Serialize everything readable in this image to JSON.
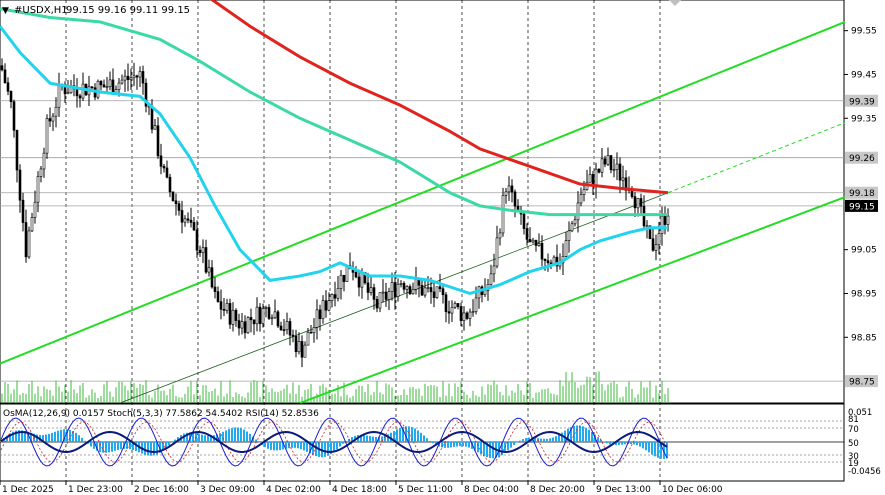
{
  "chart_data": {
    "type": "candlestick",
    "symbol_header": "#USDX,H1",
    "ohlc_header": "99.15 99.16 99.11 99.15",
    "main_panel": {
      "ylim": [
        98.7,
        99.62
      ],
      "y_ticks": [
        "99.55",
        "99.45",
        "99.35",
        "99.05",
        "98.95",
        "98.85"
      ],
      "price_tags": [
        {
          "value": 99.39,
          "label": "99.39",
          "style": "gray"
        },
        {
          "value": 99.26,
          "label": "99.26",
          "style": "gray"
        },
        {
          "value": 99.18,
          "label": "99.18",
          "style": "gray"
        },
        {
          "value": 99.15,
          "label": "99.15",
          "style": "black"
        },
        {
          "value": 98.75,
          "label": "98.75",
          "style": "gray"
        }
      ],
      "moving_averages": [
        {
          "color": "#22d3ee",
          "points": [
            [
              0,
              99.56
            ],
            [
              20,
              99.5
            ],
            [
              50,
              99.43
            ],
            [
              100,
              99.41
            ],
            [
              140,
              99.4
            ],
            [
              160,
              99.36
            ],
            [
              190,
              99.26
            ],
            [
              215,
              99.15
            ],
            [
              240,
              99.05
            ],
            [
              270,
              98.98
            ],
            [
              300,
              98.99
            ],
            [
              320,
              99.0
            ],
            [
              340,
              99.02
            ],
            [
              370,
              98.99
            ],
            [
              400,
              98.99
            ],
            [
              430,
              98.98
            ],
            [
              470,
              98.95
            ],
            [
              500,
              98.97
            ],
            [
              530,
              99.0
            ],
            [
              560,
              99.02
            ],
            [
              580,
              99.05
            ],
            [
              600,
              99.07
            ],
            [
              630,
              99.09
            ],
            [
              650,
              99.1
            ],
            [
              668,
              99.1
            ]
          ]
        },
        {
          "color": "#3cd9a8",
          "points": [
            [
              0,
              99.6
            ],
            [
              50,
              99.58
            ],
            [
              100,
              99.57
            ],
            [
              160,
              99.53
            ],
            [
              200,
              99.48
            ],
            [
              250,
              99.41
            ],
            [
              300,
              99.35
            ],
            [
              350,
              99.3
            ],
            [
              400,
              99.25
            ],
            [
              450,
              99.18
            ],
            [
              480,
              99.15
            ],
            [
              510,
              99.14
            ],
            [
              550,
              99.13
            ],
            [
              600,
              99.13
            ],
            [
              640,
              99.13
            ],
            [
              668,
              99.13
            ]
          ]
        },
        {
          "color": "#e0231e",
          "points": [
            [
              0,
              99.76
            ],
            [
              80,
              99.73
            ],
            [
              150,
              99.69
            ],
            [
              200,
              99.64
            ],
            [
              250,
              99.56
            ],
            [
              300,
              99.49
            ],
            [
              350,
              99.43
            ],
            [
              400,
              99.38
            ],
            [
              450,
              99.32
            ],
            [
              480,
              99.28
            ],
            [
              530,
              99.24
            ],
            [
              580,
              99.2
            ],
            [
              620,
              99.19
            ],
            [
              668,
              99.18
            ]
          ]
        }
      ],
      "channel_lines": [
        {
          "color": "#22dd22",
          "points": [
            [
              0,
              98.79
            ],
            [
              845,
              99.57
            ]
          ]
        },
        {
          "color": "#22dd22",
          "points": [
            [
              300,
              98.7
            ],
            [
              845,
              99.17
            ]
          ]
        },
        {
          "color": "#1a5e1a",
          "points": [
            [
              120,
              98.7
            ],
            [
              668,
              99.18
            ]
          ]
        },
        {
          "color": "#22dd22",
          "dashed": true,
          "points": [
            [
              668,
              99.18
            ],
            [
              845,
              99.34
            ]
          ]
        }
      ],
      "h_lines": [
        99.39,
        99.26,
        99.18,
        99.15,
        98.75
      ]
    },
    "x_ticks": [
      "1 Dec 2025",
      "1 Dec 23:00",
      "2 Dec 16:00",
      "3 Dec 09:00",
      "4 Dec 02:00",
      "4 Dec 18:00",
      "5 Dec 11:00",
      "8 Dec 04:00",
      "8 Dec 20:00",
      "9 Dec 13:00",
      "10 Dec 06:00"
    ],
    "indicator_panel": {
      "label": "OsMA(12,26,9) 0.0157  Stoch(5,3,3) 77.5862 54.5402  RSI(14) 52.8536",
      "right_labels": [
        "0.051",
        "81",
        "70",
        "50",
        "30",
        "19",
        "-0.0456"
      ]
    }
  }
}
